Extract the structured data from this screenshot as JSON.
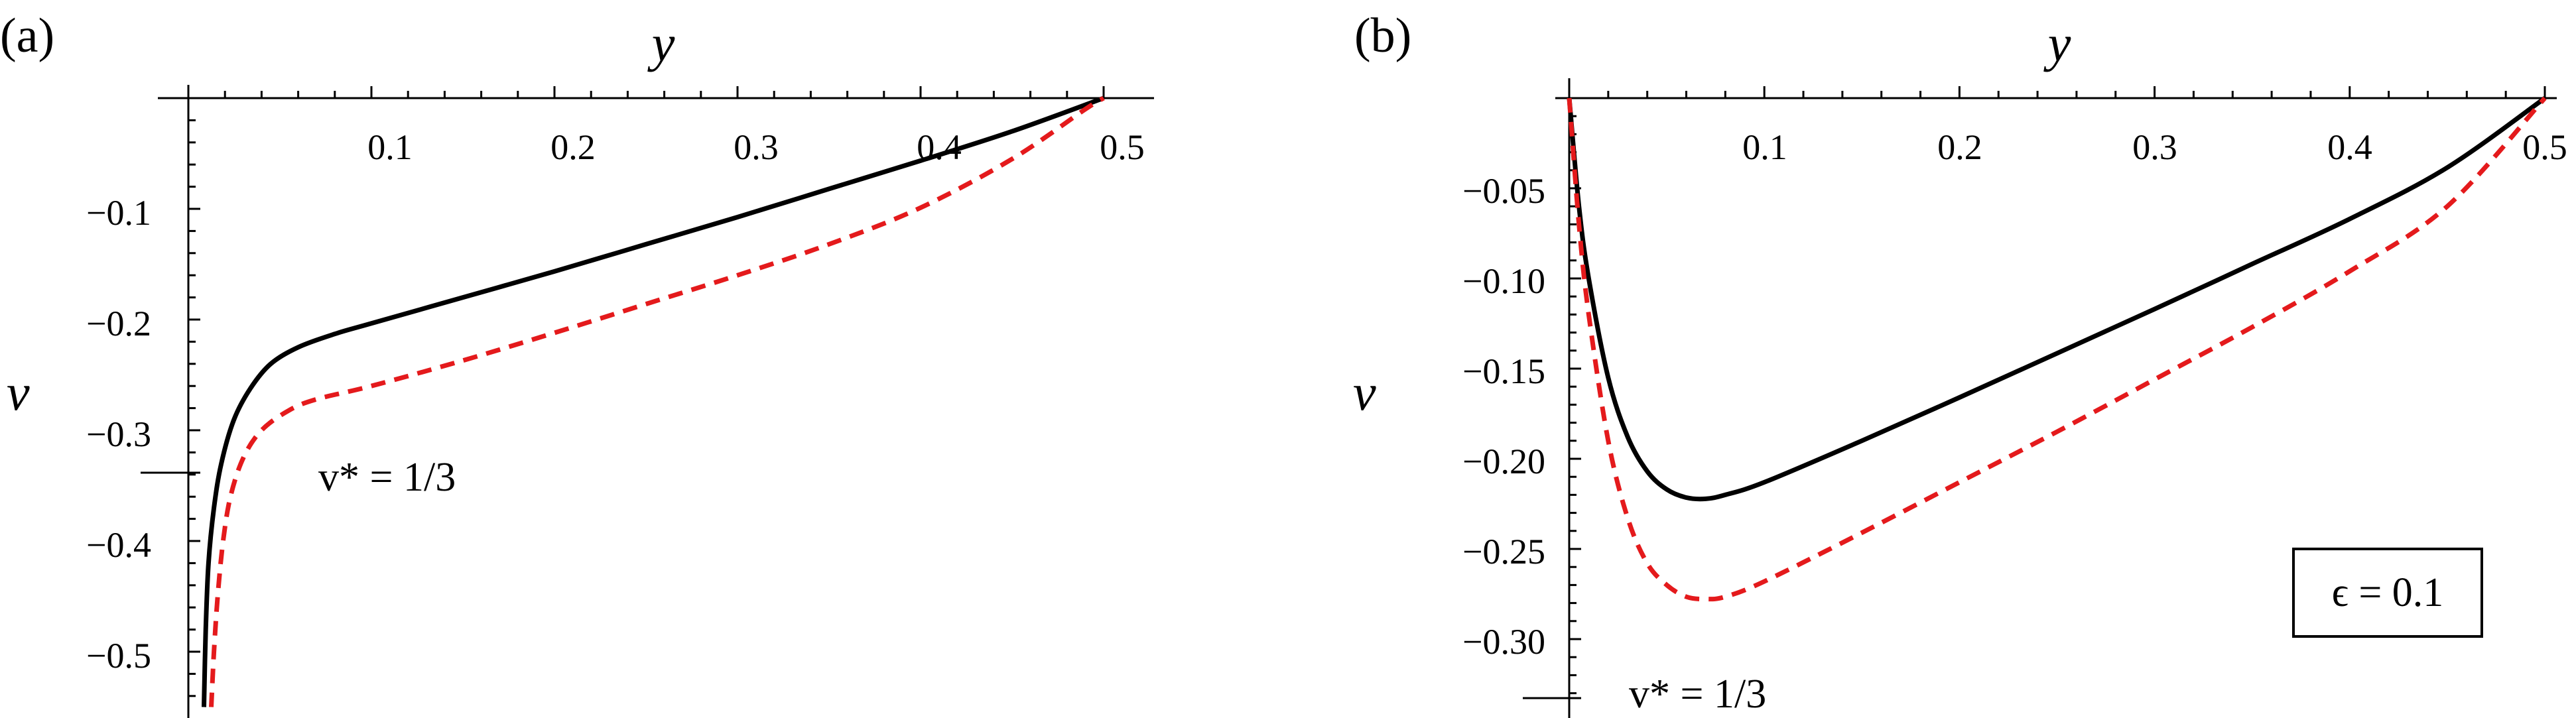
{
  "chart_data": [
    {
      "panel": "(a)",
      "type": "line",
      "xlabel": "y",
      "ylabel": "v",
      "x_ticks": [
        0.1,
        0.2,
        0.3,
        0.4,
        0.5
      ],
      "x_tick_labels": [
        "0.1",
        "0.2",
        "0.3",
        "0.4",
        "0.5"
      ],
      "y_ticks": [
        -0.1,
        -0.2,
        -0.3,
        -0.4,
        -0.5
      ],
      "y_tick_labels": [
        "−0.1",
        "−0.2",
        "−0.3",
        "−0.4",
        "−0.5"
      ],
      "xlim": [
        0,
        0.5
      ],
      "ylim": [
        -0.55,
        0
      ],
      "grid": false,
      "series": [
        {
          "color": "#000000",
          "style": "solid",
          "points": [
            [
              0.0085,
              -0.55
            ],
            [
              0.0095,
              -0.48
            ],
            [
              0.011,
              -0.42
            ],
            [
              0.014,
              -0.37
            ],
            [
              0.018,
              -0.33
            ],
            [
              0.025,
              -0.29
            ],
            [
              0.034,
              -0.262
            ],
            [
              0.045,
              -0.24
            ],
            [
              0.06,
              -0.225
            ],
            [
              0.08,
              -0.213
            ],
            [
              0.1,
              -0.2035
            ],
            [
              0.15,
              -0.18
            ],
            [
              0.2,
              -0.1565
            ],
            [
              0.25,
              -0.132
            ],
            [
              0.3,
              -0.1075
            ],
            [
              0.35,
              -0.082
            ],
            [
              0.4,
              -0.0565
            ],
            [
              0.45,
              -0.03
            ],
            [
              0.5,
              0
            ]
          ]
        },
        {
          "color": "#e41a1c",
          "style": "dashed",
          "points": [
            [
              0.0125,
              -0.55
            ],
            [
              0.014,
              -0.5
            ],
            [
              0.016,
              -0.45
            ],
            [
              0.019,
              -0.4
            ],
            [
              0.023,
              -0.36
            ],
            [
              0.03,
              -0.325
            ],
            [
              0.04,
              -0.3
            ],
            [
              0.055,
              -0.282
            ],
            [
              0.07,
              -0.272
            ],
            [
              0.1,
              -0.26
            ],
            [
              0.15,
              -0.237
            ],
            [
              0.2,
              -0.212
            ],
            [
              0.25,
              -0.186
            ],
            [
              0.3,
              -0.16
            ],
            [
              0.35,
              -0.132
            ],
            [
              0.4,
              -0.099
            ],
            [
              0.45,
              -0.055
            ],
            [
              0.49,
              -0.01
            ],
            [
              0.5,
              0
            ]
          ]
        }
      ],
      "annotations": [
        {
          "text": "v* = 1/3",
          "at_value": -0.3333
        }
      ]
    },
    {
      "panel": "(b)",
      "type": "line",
      "xlabel": "y",
      "ylabel": "v",
      "x_ticks": [
        0.1,
        0.2,
        0.3,
        0.4,
        0.5
      ],
      "x_tick_labels": [
        "0.1",
        "0.2",
        "0.3",
        "0.4",
        "0.5"
      ],
      "y_ticks": [
        -0.05,
        -0.1,
        -0.15,
        -0.2,
        -0.25,
        -0.3
      ],
      "y_tick_labels": [
        "−0.05",
        "−0.10",
        "−0.15",
        "−0.20",
        "−0.25",
        "−0.30"
      ],
      "xlim": [
        0,
        0.5
      ],
      "ylim": [
        -0.333,
        0
      ],
      "grid": false,
      "series": [
        {
          "color": "#000000",
          "style": "solid",
          "points": [
            [
              0,
              0
            ],
            [
              0.005,
              -0.06
            ],
            [
              0.01,
              -0.1
            ],
            [
              0.02,
              -0.155
            ],
            [
              0.03,
              -0.188
            ],
            [
              0.04,
              -0.207
            ],
            [
              0.05,
              -0.217
            ],
            [
              0.06,
              -0.2215
            ],
            [
              0.07,
              -0.2222
            ],
            [
              0.08,
              -0.22
            ],
            [
              0.1,
              -0.213
            ],
            [
              0.15,
              -0.19
            ],
            [
              0.2,
              -0.166
            ],
            [
              0.25,
              -0.1415
            ],
            [
              0.3,
              -0.117
            ],
            [
              0.35,
              -0.092
            ],
            [
              0.4,
              -0.067
            ],
            [
              0.45,
              -0.0385
            ],
            [
              0.5,
              0
            ]
          ]
        },
        {
          "color": "#e41a1c",
          "style": "dashed",
          "points": [
            [
              0,
              0
            ],
            [
              0.005,
              -0.07
            ],
            [
              0.01,
              -0.12
            ],
            [
              0.02,
              -0.19
            ],
            [
              0.03,
              -0.233
            ],
            [
              0.04,
              -0.258
            ],
            [
              0.05,
              -0.27
            ],
            [
              0.06,
              -0.2765
            ],
            [
              0.07,
              -0.2778
            ],
            [
              0.08,
              -0.2765
            ],
            [
              0.1,
              -0.268
            ],
            [
              0.15,
              -0.241
            ],
            [
              0.2,
              -0.213
            ],
            [
              0.25,
              -0.185
            ],
            [
              0.3,
              -0.156
            ],
            [
              0.35,
              -0.127
            ],
            [
              0.4,
              -0.096
            ],
            [
              0.45,
              -0.06
            ],
            [
              0.5,
              0
            ]
          ]
        }
      ],
      "annotations": [
        {
          "text": "v* = 1/3",
          "at_value": -0.3333
        },
        {
          "text": "ϵ = 0.1"
        }
      ]
    }
  ]
}
